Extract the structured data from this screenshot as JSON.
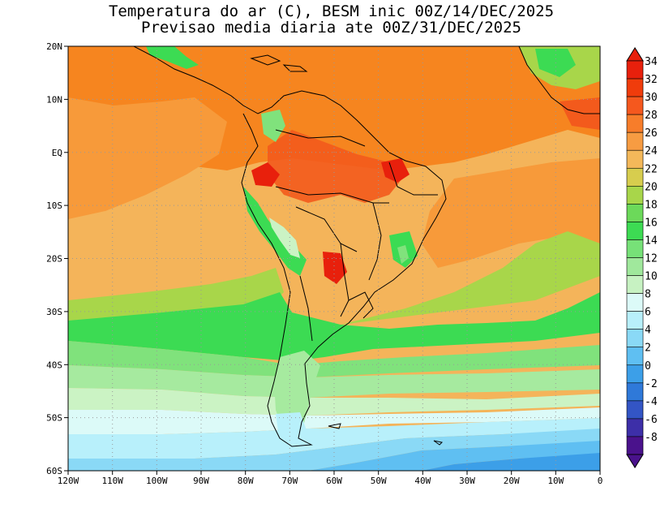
{
  "title_line1": "Temperatura do ar (C), BESM inic 00Z/14/DEC/2025",
  "title_line2": "Previsao media diaria ate 00Z/31/DEC/2025",
  "axes": {
    "lon_labels": [
      "120W",
      "110W",
      "100W",
      "90W",
      "80W",
      "70W",
      "60W",
      "50W",
      "40W",
      "30W",
      "20W",
      "10W",
      "0"
    ],
    "lat_labels": [
      "20N",
      "10N",
      "EQ",
      "10S",
      "20S",
      "30S",
      "40S",
      "50S",
      "60S"
    ]
  },
  "colorbar": {
    "labels": [
      "34",
      "32",
      "30",
      "28",
      "26",
      "24",
      "22",
      "20",
      "18",
      "16",
      "14",
      "12",
      "10",
      "8",
      "6",
      "4",
      "2",
      "0",
      "-2",
      "-4",
      "-6",
      "-8"
    ],
    "colors": [
      "#e8200c",
      "#f03c0c",
      "#f5581e",
      "#f77d2a",
      "#f79c42",
      "#f4b85a",
      "#d7cd4e",
      "#a8d64a",
      "#6cd95a",
      "#3ddb53",
      "#77e178",
      "#a0e89c",
      "#c7f2c2",
      "#dcfaf8",
      "#b8f0fb",
      "#8ad9f6",
      "#5fbff2",
      "#3c9fe8",
      "#2f79d9",
      "#3355c5",
      "#3d2fa8",
      "#4a128c"
    ]
  },
  "map_colors": {
    "warm28": "#f6851f",
    "warm26": "#f79a3a",
    "warm24": "#f4b45a",
    "hot30": "#f35a1c",
    "lime20": "#a8d64a",
    "green18": "#58d85a",
    "green16": "#3cdb53",
    "green14": "#80e27c",
    "green12": "#a6ea9f",
    "green10": "#cbf3c4",
    "cyan8": "#dcfaf8",
    "cyan6": "#b8f0fb",
    "blue4": "#8ad9f6",
    "blue2": "#5fbff2",
    "blue0": "#3c9fe8",
    "blueneg": "#2f79d9"
  }
}
